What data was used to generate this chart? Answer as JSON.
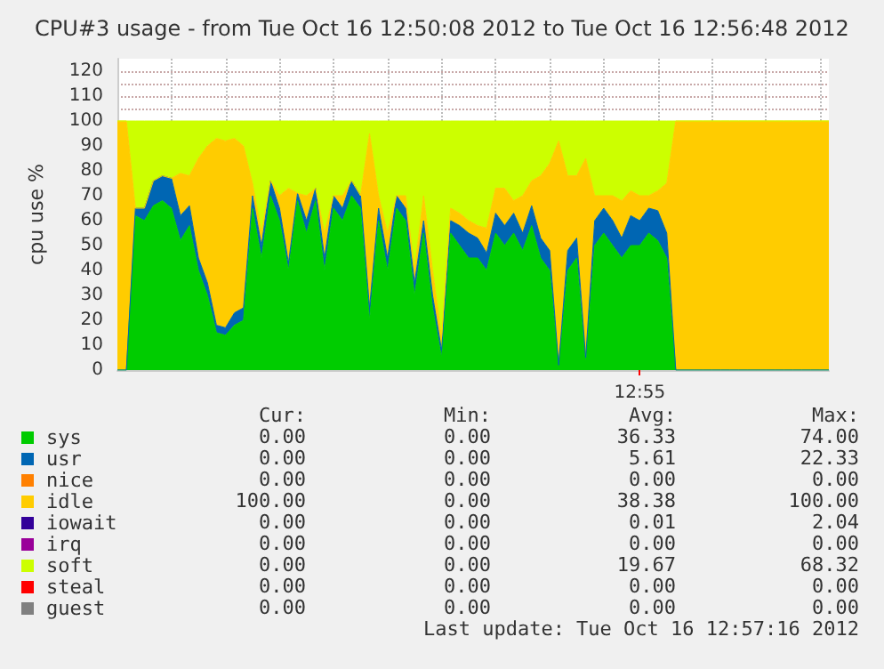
{
  "chart_data": {
    "type": "area",
    "stacked": true,
    "title": "CPU#3 usage - from Tue Oct 16 12:50:08 2012 to Tue Oct 16 12:56:48 2012",
    "ylabel": "cpu use %",
    "categories": [
      null,
      null,
      null,
      null,
      null,
      null,
      null,
      null,
      null,
      null,
      null,
      null,
      null,
      null,
      null,
      null,
      null,
      null,
      null,
      null,
      null,
      null,
      null,
      null,
      null,
      null,
      null,
      null,
      null,
      null,
      null,
      null,
      null,
      null,
      null,
      null,
      null,
      null,
      null,
      null,
      null,
      null,
      null,
      null,
      null,
      null,
      null,
      null,
      null,
      null,
      null,
      null,
      null,
      null,
      null,
      null,
      null,
      null,
      "12:55",
      null,
      null,
      null,
      null,
      null,
      null,
      null,
      null,
      null,
      null,
      null,
      null,
      null,
      null,
      null,
      null,
      null,
      null,
      null,
      null,
      null
    ],
    "series": [
      {
        "name": "sys",
        "color": "#00cc00",
        "values": [
          0,
          0,
          62,
          60,
          66,
          68,
          65,
          52,
          58,
          40,
          30,
          15,
          14,
          18,
          20,
          65,
          45,
          70,
          60,
          40,
          68,
          55,
          68,
          40,
          65,
          60,
          70,
          65,
          20,
          60,
          40,
          65,
          60,
          30,
          55,
          25,
          5,
          55,
          50,
          45,
          45,
          40,
          55,
          50,
          55,
          48,
          58,
          45,
          40,
          2,
          40,
          45,
          3,
          50,
          55,
          50,
          45,
          50,
          50,
          55,
          52,
          45,
          0,
          0,
          0,
          0,
          0,
          0,
          0,
          0,
          0,
          0,
          0,
          0,
          0,
          0,
          0,
          0,
          0,
          0
        ]
      },
      {
        "name": "usr",
        "color": "#0066b3",
        "values": [
          0,
          0,
          3,
          5,
          10,
          10,
          12,
          10,
          8,
          5,
          5,
          3,
          3,
          5,
          5,
          5,
          5,
          6,
          5,
          3,
          3,
          5,
          5,
          5,
          5,
          5,
          6,
          5,
          5,
          5,
          5,
          5,
          5,
          5,
          5,
          5,
          3,
          5,
          8,
          10,
          8,
          7,
          8,
          8,
          8,
          7,
          8,
          8,
          8,
          0,
          8,
          8,
          2,
          10,
          10,
          10,
          8,
          12,
          10,
          10,
          12,
          10,
          0,
          0,
          0,
          0,
          0,
          0,
          0,
          0,
          0,
          0,
          0,
          0,
          0,
          0,
          0,
          0,
          0,
          0
        ]
      },
      {
        "name": "nice",
        "color": "#ff8000",
        "values": [
          null,
          null,
          null,
          null,
          null,
          null,
          null,
          null,
          null,
          null,
          null,
          null,
          null,
          null,
          null,
          null,
          null,
          null,
          null,
          null,
          null,
          null,
          null,
          null,
          null,
          null,
          null,
          null,
          null,
          null,
          null,
          null,
          null,
          null,
          null,
          null,
          null,
          null,
          null,
          null,
          null,
          null,
          null,
          null,
          null,
          null,
          null,
          null,
          null,
          null,
          null,
          null,
          null,
          null,
          null,
          null,
          null,
          null,
          null,
          null,
          null,
          null,
          null,
          null,
          null,
          null,
          null,
          null,
          null,
          null,
          null,
          null,
          null,
          null,
          null,
          null,
          null,
          null,
          null,
          null
        ]
      },
      {
        "name": "idle",
        "color": "#ffcc00",
        "values": [
          100,
          100,
          0,
          0,
          0,
          0,
          0,
          17,
          12,
          40,
          55,
          75,
          75,
          70,
          65,
          5,
          5,
          0,
          5,
          30,
          0,
          10,
          0,
          10,
          0,
          5,
          0,
          0,
          70,
          5,
          10,
          0,
          5,
          5,
          10,
          10,
          5,
          5,
          5,
          5,
          5,
          10,
          10,
          15,
          5,
          15,
          10,
          25,
          35,
          90,
          30,
          25,
          80,
          10,
          5,
          10,
          15,
          10,
          10,
          5,
          8,
          20,
          100,
          100,
          100,
          100,
          100,
          100,
          100,
          100,
          100,
          100,
          100,
          100,
          100,
          100,
          100,
          100,
          100,
          100
        ]
      },
      {
        "name": "iowait",
        "color": "#330099",
        "values": [
          null,
          null,
          null,
          null,
          null,
          null,
          null,
          null,
          null,
          null,
          null,
          null,
          null,
          null,
          null,
          null,
          null,
          null,
          null,
          null,
          null,
          null,
          null,
          null,
          null,
          null,
          null,
          null,
          null,
          null,
          null,
          null,
          null,
          null,
          null,
          null,
          null,
          null,
          null,
          null,
          null,
          null,
          null,
          null,
          null,
          null,
          null,
          null,
          null,
          null,
          null,
          null,
          null,
          null,
          null,
          null,
          null,
          null,
          null,
          null,
          null,
          null,
          null,
          null,
          null,
          null,
          null,
          null,
          null,
          null,
          null,
          null,
          null,
          null,
          null,
          null,
          null,
          null,
          null,
          null
        ]
      },
      {
        "name": "irq",
        "color": "#990099",
        "values": [
          null,
          null,
          null,
          null,
          null,
          null,
          null,
          null,
          null,
          null,
          null,
          null,
          null,
          null,
          null,
          null,
          null,
          null,
          null,
          null,
          null,
          null,
          null,
          null,
          null,
          null,
          null,
          null,
          null,
          null,
          null,
          null,
          null,
          null,
          null,
          null,
          null,
          null,
          null,
          null,
          null,
          null,
          null,
          null,
          null,
          null,
          null,
          null,
          null,
          null,
          null,
          null,
          null,
          null,
          null,
          null,
          null,
          null,
          null,
          null,
          null,
          null,
          null,
          null,
          null,
          null,
          null,
          null,
          null,
          null,
          null,
          null,
          null,
          null,
          null,
          null,
          null,
          null,
          null,
          null
        ]
      },
      {
        "name": "soft",
        "color": "#ccff00",
        "values": [
          0,
          0,
          35,
          35,
          24,
          22,
          23,
          21,
          22,
          15,
          10,
          7,
          8,
          7,
          10,
          25,
          45,
          24,
          30,
          27,
          29,
          30,
          27,
          45,
          30,
          30,
          24,
          30,
          5,
          30,
          45,
          30,
          30,
          60,
          30,
          60,
          87,
          35,
          37,
          40,
          42,
          43,
          27,
          27,
          32,
          30,
          24,
          22,
          17,
          8,
          22,
          22,
          15,
          30,
          30,
          30,
          32,
          28,
          30,
          30,
          28,
          25,
          0,
          0,
          0,
          0,
          0,
          0,
          0,
          0,
          0,
          0,
          0,
          0,
          0,
          0,
          0,
          0,
          0,
          0
        ]
      },
      {
        "name": "steal",
        "color": "#ff0000",
        "values": [
          null,
          null,
          null,
          null,
          null,
          null,
          null,
          null,
          null,
          null,
          null,
          null,
          null,
          null,
          null,
          null,
          null,
          null,
          null,
          null,
          null,
          null,
          null,
          null,
          null,
          null,
          null,
          null,
          null,
          null,
          null,
          null,
          null,
          null,
          null,
          null,
          null,
          null,
          null,
          null,
          null,
          null,
          null,
          null,
          null,
          null,
          null,
          null,
          null,
          null,
          null,
          null,
          null,
          null,
          null,
          null,
          null,
          null,
          null,
          null,
          null,
          null,
          null,
          null,
          null,
          null,
          null,
          null,
          null,
          null,
          null,
          null,
          null,
          null,
          null,
          null,
          null,
          null,
          null,
          null
        ]
      },
      {
        "name": "guest",
        "color": "#808080",
        "values": [
          null,
          null,
          null,
          null,
          null,
          null,
          null,
          null,
          null,
          null,
          null,
          null,
          null,
          null,
          null,
          null,
          null,
          null,
          null,
          null,
          null,
          null,
          null,
          null,
          null,
          null,
          null,
          null,
          null,
          null,
          null,
          null,
          null,
          null,
          null,
          null,
          null,
          null,
          null,
          null,
          null,
          null,
          null,
          null,
          null,
          null,
          null,
          null,
          null,
          null,
          null,
          null,
          null,
          null,
          null,
          null,
          null,
          null,
          null,
          null,
          null,
          null,
          null,
          null,
          null,
          null,
          null,
          null,
          null,
          null,
          null,
          null,
          null,
          null,
          null,
          null,
          null,
          null,
          null,
          null
        ]
      }
    ],
    "ylim": [
      0,
      125
    ],
    "yticks": [
      0,
      10,
      20,
      30,
      40,
      50,
      60,
      70,
      80,
      90,
      100,
      110,
      120
    ],
    "grid": true,
    "legend": "bottom left",
    "marker": "none",
    "annotations": [
      "Cur:",
      "Min:",
      "Avg:",
      "Max:",
      "0.00",
      "0.00",
      "36.33",
      "74.00",
      "0.00",
      "0.00",
      "5.61",
      "22.33",
      "0.00",
      "0.00",
      "0.00",
      "0.00",
      "100.00",
      "0.00",
      "38.38",
      "100.00",
      "0.00",
      "0.00",
      "0.01",
      "2.04",
      "0.00",
      "0.00",
      "0.00",
      "0.00",
      "0.00",
      "0.00",
      "19.67",
      "68.32",
      "0.00",
      "0.00",
      "0.00",
      "0.00",
      "0.00",
      "0.00",
      "0.00",
      "0.00",
      "Last update: Tue Oct 16 12:57:16 2012"
    ]
  }
}
